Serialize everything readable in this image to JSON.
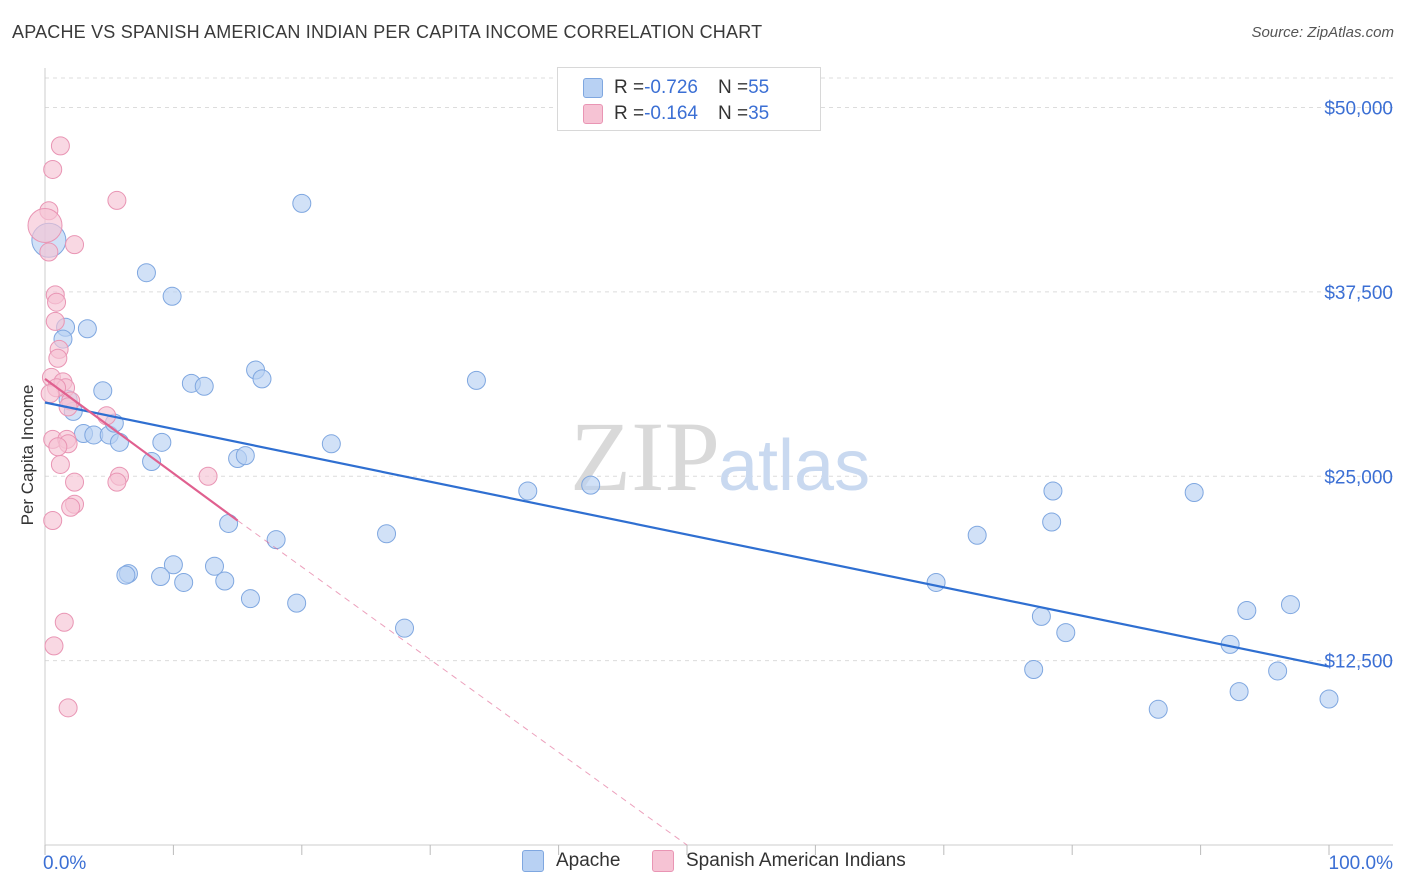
{
  "header": {
    "title": "APACHE VS SPANISH AMERICAN INDIAN PER CAPITA INCOME CORRELATION CHART",
    "source": "Source: ZipAtlas.com"
  },
  "watermark": {
    "zip": "ZIP",
    "atlas": "atlas"
  },
  "legend_top": {
    "apache": {
      "r_label": "R = ",
      "r_value": "-0.726",
      "n_label": "N = ",
      "n_value": "55"
    },
    "spanish": {
      "r_label": "R = ",
      "r_value": "-0.164",
      "n_label": "N = ",
      "n_value": "35"
    }
  },
  "legend_bottom": {
    "apache": "Apache",
    "spanish": "Spanish American Indians"
  },
  "colors": {
    "apache_fill": "#b8d1f3",
    "apache_stroke": "#7fa7e0",
    "apache_line": "#2f6fd1",
    "spanish_fill": "#f6c3d4",
    "spanish_stroke": "#e995b4",
    "spanish_line": "#e0608f",
    "axis_text": "#3b6fd4",
    "grid": "#dcdcdc"
  },
  "chart_data": {
    "type": "scatter",
    "title": "APACHE VS SPANISH AMERICAN INDIAN PER CAPITA INCOME CORRELATION CHART",
    "xlabel": "",
    "ylabel": "Per Capita Income",
    "xlim": [
      0,
      100
    ],
    "ylim": [
      0,
      52000
    ],
    "x_tick_labels": [
      "0.0%",
      "100.0%"
    ],
    "y_ticks": [
      12500,
      25000,
      37500,
      50000
    ],
    "y_tick_labels": [
      "$12,500",
      "$25,000",
      "$37,500",
      "$50,000"
    ],
    "grid": true,
    "series": [
      {
        "name": "Apache",
        "r": -0.726,
        "n": 55,
        "trend": {
          "x": [
            0,
            100
          ],
          "y": [
            30000,
            12100
          ],
          "dashed_extension": false
        },
        "points": [
          [
            0.3,
            41000
          ],
          [
            1.6,
            35100
          ],
          [
            1.4,
            34300
          ],
          [
            3.3,
            35000
          ],
          [
            7.9,
            38800
          ],
          [
            9.9,
            37200
          ],
          [
            20.0,
            43500
          ],
          [
            1.8,
            30200
          ],
          [
            2.2,
            29400
          ],
          [
            3.0,
            27900
          ],
          [
            3.8,
            27800
          ],
          [
            4.5,
            30800
          ],
          [
            5.0,
            27800
          ],
          [
            5.4,
            28600
          ],
          [
            5.8,
            27300
          ],
          [
            8.3,
            26000
          ],
          [
            9.1,
            27300
          ],
          [
            11.4,
            31300
          ],
          [
            12.4,
            31100
          ],
          [
            15.0,
            26200
          ],
          [
            15.6,
            26400
          ],
          [
            16.4,
            32200
          ],
          [
            16.9,
            31600
          ],
          [
            22.3,
            27200
          ],
          [
            33.6,
            31500
          ],
          [
            37.6,
            24000
          ],
          [
            42.5,
            24400
          ],
          [
            14.3,
            21800
          ],
          [
            18.0,
            20700
          ],
          [
            10.0,
            19000
          ],
          [
            13.2,
            18900
          ],
          [
            14.0,
            17900
          ],
          [
            9.0,
            18200
          ],
          [
            6.5,
            18400
          ],
          [
            6.3,
            18300
          ],
          [
            10.8,
            17800
          ],
          [
            16.0,
            16700
          ],
          [
            19.6,
            16400
          ],
          [
            26.6,
            21100
          ],
          [
            28.0,
            14700
          ],
          [
            69.4,
            17800
          ],
          [
            72.6,
            21000
          ],
          [
            78.5,
            24000
          ],
          [
            78.4,
            21900
          ],
          [
            77.6,
            15500
          ],
          [
            77.0,
            11900
          ],
          [
            79.5,
            14400
          ],
          [
            89.5,
            23900
          ],
          [
            92.3,
            13600
          ],
          [
            93.6,
            15900
          ],
          [
            96.0,
            11800
          ],
          [
            97.0,
            16300
          ],
          [
            86.7,
            9200
          ],
          [
            93.0,
            10400
          ],
          [
            100.0,
            9900
          ]
        ]
      },
      {
        "name": "Spanish American Indians",
        "r": -0.164,
        "n": 35,
        "trend": {
          "x": [
            0,
            15
          ],
          "y": [
            31600,
            22000
          ],
          "dashed_extension": true,
          "dashed_to": [
            50,
            0
          ]
        },
        "points": [
          [
            1.2,
            47400
          ],
          [
            0.6,
            45800
          ],
          [
            5.6,
            43700
          ],
          [
            0.3,
            43000
          ],
          [
            0.3,
            40200
          ],
          [
            2.3,
            40700
          ],
          [
            0.8,
            37300
          ],
          [
            0.9,
            36800
          ],
          [
            0.8,
            35500
          ],
          [
            1.1,
            33600
          ],
          [
            1.0,
            33000
          ],
          [
            0.5,
            31700
          ],
          [
            1.4,
            31400
          ],
          [
            1.6,
            31000
          ],
          [
            0.9,
            31000
          ],
          [
            2.0,
            30100
          ],
          [
            1.8,
            29700
          ],
          [
            4.8,
            29100
          ],
          [
            0.6,
            27500
          ],
          [
            1.7,
            27500
          ],
          [
            1.8,
            27200
          ],
          [
            1.2,
            25800
          ],
          [
            5.8,
            25000
          ],
          [
            5.6,
            24600
          ],
          [
            2.3,
            24600
          ],
          [
            12.7,
            25000
          ],
          [
            2.3,
            23100
          ],
          [
            2.0,
            22900
          ],
          [
            0.6,
            22000
          ],
          [
            1.5,
            15100
          ],
          [
            0.7,
            13500
          ],
          [
            1.8,
            9300
          ],
          [
            0.0,
            42000
          ],
          [
            0.4,
            30600
          ],
          [
            1.0,
            27000
          ]
        ]
      }
    ]
  }
}
